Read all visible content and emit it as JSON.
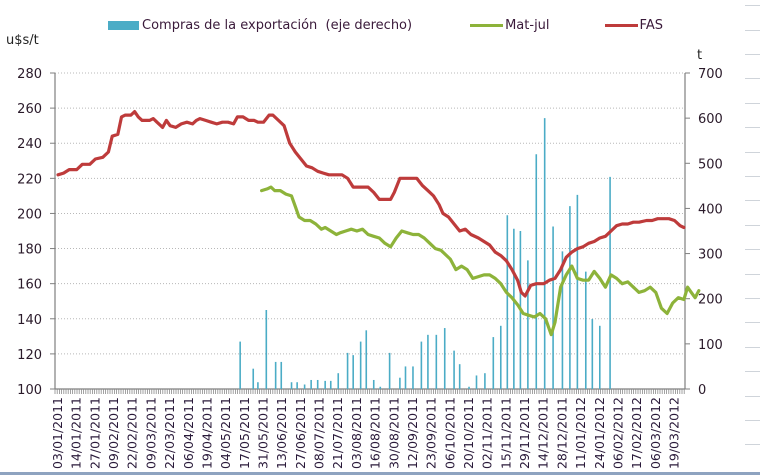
{
  "chart_data": {
    "type": "bar+line",
    "title": "",
    "ylabel_left": "u$s/t",
    "ylabel_right": "t",
    "ylim_left": [
      100,
      280
    ],
    "ylim_right": [
      0,
      700
    ],
    "yticks_left": [
      100,
      120,
      140,
      160,
      180,
      200,
      220,
      240,
      260,
      280
    ],
    "yticks_right": [
      0,
      100,
      200,
      300,
      400,
      500,
      600,
      700
    ],
    "grid": true,
    "legend_position": "top",
    "legend": [
      {
        "label": "Compras de la exportación  (eje derecho)",
        "type": "bar",
        "color": "#4bacc6"
      },
      {
        "label": "Mat-jul",
        "type": "line",
        "color": "#8db33a"
      },
      {
        "label": "FAS",
        "type": "line",
        "color": "#be3b3b"
      }
    ],
    "x_tick_labels": [
      "03/01/2011",
      "14/01/2011",
      "27/01/2011",
      "09/02/2011",
      "22/02/2011",
      "09/03/2011",
      "22/03/2011",
      "06/04/2011",
      "19/04/2011",
      "04/05/2011",
      "17/05/2011",
      "31/05/2011",
      "13/06/2011",
      "27/06/2011",
      "08/07/2011",
      "21/07/2011",
      "03/08/2011",
      "16/08/2011",
      "30/08/2011",
      "12/09/2011",
      "23/09/2011",
      "06/10/2011",
      "20/10/2011",
      "02/11/2011",
      "15/11/2011",
      "29/11/2011",
      "14/12/2011",
      "28/12/2011",
      "11/01/2012",
      "24/01/2012",
      "06/02/2012",
      "17/02/2012",
      "06/03/2012",
      "19/03/2012"
    ],
    "series": [
      {
        "name": "FAS",
        "axis": "left",
        "points": [
          [
            0,
            222
          ],
          [
            0.3,
            223
          ],
          [
            0.6,
            225
          ],
          [
            1.0,
            225
          ],
          [
            1.3,
            228
          ],
          [
            1.7,
            228
          ],
          [
            2.0,
            231
          ],
          [
            2.4,
            232
          ],
          [
            2.7,
            235
          ],
          [
            2.9,
            244
          ],
          [
            3.2,
            245
          ],
          [
            3.4,
            255
          ],
          [
            3.6,
            256
          ],
          [
            3.9,
            256
          ],
          [
            4.1,
            258
          ],
          [
            4.3,
            255
          ],
          [
            4.5,
            253
          ],
          [
            4.9,
            253
          ],
          [
            5.1,
            254
          ],
          [
            5.3,
            252
          ],
          [
            5.6,
            249
          ],
          [
            5.8,
            253
          ],
          [
            6.0,
            250
          ],
          [
            6.3,
            249
          ],
          [
            6.6,
            251
          ],
          [
            6.9,
            252
          ],
          [
            7.2,
            251
          ],
          [
            7.4,
            253
          ],
          [
            7.6,
            254
          ],
          [
            7.9,
            253
          ],
          [
            8.2,
            252
          ],
          [
            8.5,
            251
          ],
          [
            8.8,
            252
          ],
          [
            9.1,
            252
          ],
          [
            9.4,
            251
          ],
          [
            9.6,
            255
          ],
          [
            9.9,
            255
          ],
          [
            10.2,
            253
          ],
          [
            10.5,
            253
          ],
          [
            10.7,
            252
          ],
          [
            11.0,
            252
          ],
          [
            11.3,
            256
          ],
          [
            11.5,
            256
          ],
          [
            11.8,
            253
          ],
          [
            12.1,
            250
          ],
          [
            12.4,
            240
          ],
          [
            12.7,
            235
          ],
          [
            13.0,
            231
          ],
          [
            13.3,
            227
          ],
          [
            13.6,
            226
          ],
          [
            13.9,
            224
          ],
          [
            14.2,
            223
          ],
          [
            14.5,
            222
          ],
          [
            14.8,
            222
          ],
          [
            15.2,
            222
          ],
          [
            15.5,
            220
          ],
          [
            15.8,
            215
          ],
          [
            16.2,
            215
          ],
          [
            16.6,
            215
          ],
          [
            16.9,
            212
          ],
          [
            17.2,
            208
          ],
          [
            17.5,
            208
          ],
          [
            17.8,
            208
          ],
          [
            18.0,
            212
          ],
          [
            18.3,
            220
          ],
          [
            18.6,
            220
          ],
          [
            19.0,
            220
          ],
          [
            19.2,
            220
          ],
          [
            19.5,
            216
          ],
          [
            19.8,
            213
          ],
          [
            20.1,
            210
          ],
          [
            20.4,
            205
          ],
          [
            20.6,
            200
          ],
          [
            20.9,
            198
          ],
          [
            21.2,
            194
          ],
          [
            21.5,
            190
          ],
          [
            21.8,
            191
          ],
          [
            22.1,
            188
          ],
          [
            22.5,
            186
          ],
          [
            22.8,
            184
          ],
          [
            23.1,
            182
          ],
          [
            23.4,
            178
          ],
          [
            23.7,
            176
          ],
          [
            24.0,
            173
          ],
          [
            24.3,
            168
          ],
          [
            24.6,
            162
          ],
          [
            24.8,
            155
          ],
          [
            25.0,
            153
          ],
          [
            25.3,
            159
          ],
          [
            25.6,
            160
          ],
          [
            26.0,
            160
          ],
          [
            26.3,
            162
          ],
          [
            26.6,
            163
          ],
          [
            26.9,
            168
          ],
          [
            27.2,
            175
          ],
          [
            27.5,
            178
          ],
          [
            27.8,
            180
          ],
          [
            28.1,
            181
          ],
          [
            28.4,
            183
          ],
          [
            28.7,
            184
          ],
          [
            29.0,
            186
          ],
          [
            29.3,
            187
          ],
          [
            29.6,
            190
          ],
          [
            29.9,
            193
          ],
          [
            30.2,
            194
          ],
          [
            30.5,
            194
          ],
          [
            30.8,
            195
          ],
          [
            31.1,
            195
          ],
          [
            31.5,
            196
          ],
          [
            31.8,
            196
          ],
          [
            32.1,
            197
          ],
          [
            32.4,
            197
          ],
          [
            32.7,
            197
          ],
          [
            33.0,
            196
          ],
          [
            33.3,
            193
          ],
          [
            33.5,
            192
          ]
        ]
      },
      {
        "name": "Mat-jul",
        "axis": "left",
        "points": [
          [
            10.9,
            213
          ],
          [
            11.2,
            214
          ],
          [
            11.4,
            215
          ],
          [
            11.6,
            213
          ],
          [
            11.9,
            213
          ],
          [
            12.2,
            211
          ],
          [
            12.5,
            210
          ],
          [
            12.7,
            204
          ],
          [
            12.9,
            198
          ],
          [
            13.2,
            196
          ],
          [
            13.5,
            196
          ],
          [
            13.8,
            194
          ],
          [
            14.1,
            191
          ],
          [
            14.3,
            192
          ],
          [
            14.6,
            190
          ],
          [
            14.9,
            188
          ],
          [
            15.1,
            189
          ],
          [
            15.4,
            190
          ],
          [
            15.7,
            191
          ],
          [
            16.0,
            190
          ],
          [
            16.3,
            191
          ],
          [
            16.6,
            188
          ],
          [
            16.9,
            187
          ],
          [
            17.2,
            186
          ],
          [
            17.5,
            183
          ],
          [
            17.8,
            181
          ],
          [
            18.1,
            186
          ],
          [
            18.4,
            190
          ],
          [
            18.7,
            189
          ],
          [
            19.0,
            188
          ],
          [
            19.3,
            188
          ],
          [
            19.6,
            186
          ],
          [
            19.9,
            183
          ],
          [
            20.2,
            180
          ],
          [
            20.5,
            179
          ],
          [
            20.8,
            176
          ],
          [
            21.0,
            174
          ],
          [
            21.3,
            168
          ],
          [
            21.6,
            170
          ],
          [
            21.9,
            168
          ],
          [
            22.2,
            163
          ],
          [
            22.5,
            164
          ],
          [
            22.8,
            165
          ],
          [
            23.1,
            165
          ],
          [
            23.4,
            163
          ],
          [
            23.7,
            160
          ],
          [
            24.0,
            155
          ],
          [
            24.3,
            152
          ],
          [
            24.6,
            148
          ],
          [
            24.9,
            143
          ],
          [
            25.2,
            142
          ],
          [
            25.5,
            141
          ],
          [
            25.8,
            143
          ],
          [
            26.1,
            140
          ],
          [
            26.4,
            131
          ],
          [
            26.6,
            138
          ],
          [
            26.9,
            158
          ],
          [
            27.2,
            165
          ],
          [
            27.5,
            170
          ],
          [
            27.8,
            163
          ],
          [
            28.1,
            162
          ],
          [
            28.4,
            162
          ],
          [
            28.7,
            167
          ],
          [
            29.0,
            163
          ],
          [
            29.3,
            158
          ],
          [
            29.6,
            165
          ],
          [
            29.9,
            163
          ],
          [
            30.2,
            160
          ],
          [
            30.5,
            161
          ],
          [
            30.8,
            158
          ],
          [
            31.1,
            155
          ],
          [
            31.4,
            156
          ],
          [
            31.7,
            158
          ],
          [
            32.0,
            155
          ],
          [
            32.3,
            146
          ],
          [
            32.6,
            143
          ],
          [
            32.9,
            149
          ],
          [
            33.2,
            152
          ],
          [
            33.5,
            151
          ],
          [
            33.7,
            158
          ],
          [
            33.9,
            155
          ],
          [
            34.1,
            152
          ],
          [
            34.3,
            156
          ]
        ]
      },
      {
        "name": "Compras de la exportación  (eje derecho)",
        "axis": "right",
        "bars": [
          [
            9.75,
            105
          ],
          [
            10.45,
            45
          ],
          [
            10.7,
            15
          ],
          [
            11.15,
            175
          ],
          [
            11.65,
            60
          ],
          [
            11.95,
            60
          ],
          [
            12.5,
            15
          ],
          [
            12.8,
            15
          ],
          [
            13.2,
            10
          ],
          [
            13.55,
            20
          ],
          [
            13.9,
            20
          ],
          [
            14.3,
            18
          ],
          [
            14.6,
            18
          ],
          [
            15.0,
            35
          ],
          [
            15.5,
            80
          ],
          [
            15.8,
            75
          ],
          [
            16.2,
            105
          ],
          [
            16.5,
            130
          ],
          [
            16.9,
            20
          ],
          [
            17.25,
            5
          ],
          [
            17.75,
            80
          ],
          [
            18.3,
            25
          ],
          [
            18.6,
            50
          ],
          [
            19.0,
            50
          ],
          [
            19.45,
            105
          ],
          [
            19.8,
            120
          ],
          [
            20.25,
            120
          ],
          [
            20.7,
            135
          ],
          [
            21.2,
            85
          ],
          [
            21.5,
            55
          ],
          [
            22.0,
            5
          ],
          [
            22.4,
            30
          ],
          [
            22.85,
            35
          ],
          [
            23.3,
            115
          ],
          [
            23.7,
            140
          ],
          [
            24.05,
            385
          ],
          [
            24.4,
            355
          ],
          [
            24.75,
            350
          ],
          [
            25.15,
            285
          ],
          [
            25.6,
            520
          ],
          [
            26.05,
            600
          ],
          [
            26.5,
            360
          ],
          [
            27.0,
            305
          ],
          [
            27.4,
            405
          ],
          [
            27.8,
            430
          ],
          [
            28.25,
            260
          ],
          [
            28.6,
            155
          ],
          [
            29.0,
            140
          ],
          [
            29.55,
            470
          ]
        ]
      }
    ]
  }
}
